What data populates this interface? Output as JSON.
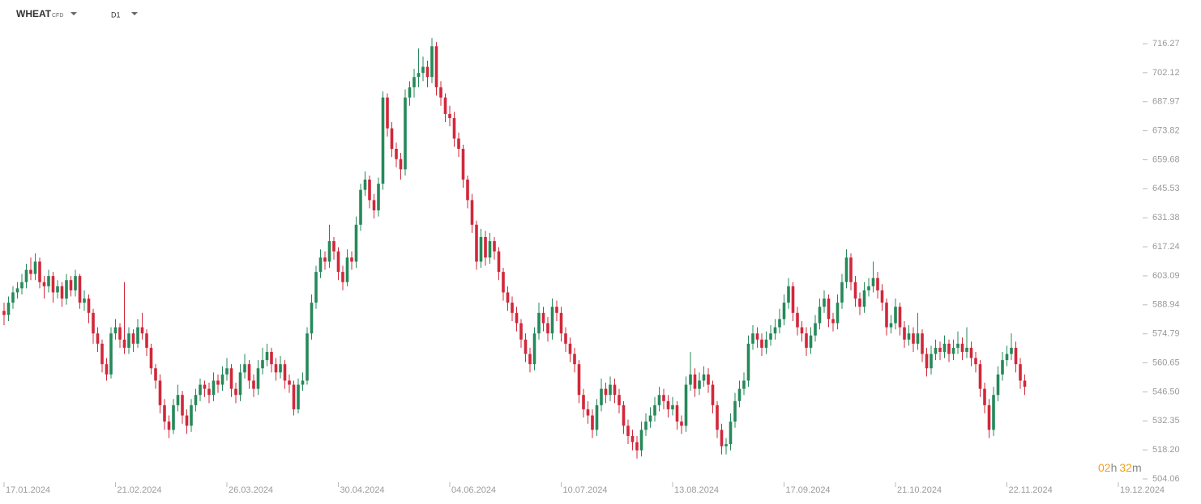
{
  "header": {
    "symbol": "WHEAT",
    "instrument_type": "CFD",
    "timeframe": "D1"
  },
  "countdown": {
    "hours": "02",
    "hours_unit": "h",
    "minutes": "32",
    "minutes_unit": "m"
  },
  "chart_data": {
    "type": "candlestick",
    "up_color": "#26895a",
    "down_color": "#d1283b",
    "xlim": [
      0,
      250
    ],
    "xticks": [
      {
        "value": 0,
        "label": "17.01.2024"
      },
      {
        "value": 25,
        "label": "21.02.2024"
      },
      {
        "value": 50,
        "label": "26.03.2024"
      },
      {
        "value": 75,
        "label": "30.04.2024"
      },
      {
        "value": 100,
        "label": "04.06.2024"
      },
      {
        "value": 125,
        "label": "10.07.2024"
      },
      {
        "value": 150,
        "label": "13.08.2024"
      },
      {
        "value": 175,
        "label": "17.09.2024"
      },
      {
        "value": 200,
        "label": "21.10.2024"
      },
      {
        "value": 225,
        "label": "22.11.2024"
      },
      {
        "value": 250,
        "label": "19.12.2024"
      }
    ],
    "ylim": [
      504.06,
      716.27
    ],
    "yticks": [
      716.27,
      702.12,
      687.97,
      673.82,
      659.68,
      645.53,
      631.38,
      617.24,
      603.09,
      588.94,
      574.79,
      560.65,
      {
        "value": 546.5,
        "label": "546.50"
      },
      532.35,
      {
        "value": 518.2,
        "label": "518.20"
      },
      504.06
    ],
    "open": [
      586,
      584,
      590,
      595,
      597,
      600,
      606,
      604,
      610,
      600,
      598,
      603,
      595,
      598,
      592,
      601,
      596,
      603,
      590,
      592,
      585,
      575,
      570,
      560,
      555,
      575,
      578,
      572,
      568,
      575,
      570,
      578,
      575,
      568,
      558,
      552,
      540,
      532,
      528,
      540,
      545,
      535,
      530,
      540,
      545,
      550,
      548,
      545,
      552,
      550,
      555,
      558,
      548,
      545,
      556,
      560,
      552,
      548,
      558,
      562,
      566,
      560,
      556,
      560,
      552,
      550,
      538,
      550,
      552,
      575,
      590,
      605,
      612,
      610,
      620,
      615,
      605,
      600,
      612,
      610,
      628,
      645,
      650,
      640,
      635,
      648,
      690,
      675,
      665,
      660,
      655,
      690,
      695,
      700,
      702,
      705,
      700,
      715,
      695,
      690,
      682,
      680,
      670,
      665,
      650,
      640,
      628,
      610,
      622,
      612,
      620,
      615,
      605,
      595,
      590,
      585,
      580,
      572,
      565,
      560,
      575,
      585,
      580,
      575,
      588,
      585,
      575,
      570,
      565,
      560,
      545,
      538,
      535,
      528,
      540,
      548,
      545,
      550,
      545,
      540,
      530,
      525,
      522,
      518,
      528,
      532,
      535,
      540,
      545,
      542,
      538,
      540,
      532,
      530,
      550,
      555,
      548,
      552,
      555,
      550,
      540,
      528,
      520,
      521,
      532,
      542,
      548,
      552,
      570,
      575,
      572,
      568,
      572,
      575,
      578,
      582,
      590,
      598,
      585,
      578,
      575,
      568,
      574,
      580,
      588,
      592,
      582,
      580,
      590,
      600,
      612,
      600,
      592,
      588,
      596,
      598,
      602,
      596,
      590,
      578,
      580,
      588,
      578,
      572,
      575,
      570,
      575,
      565,
      558,
      565,
      568,
      566,
      570,
      565,
      568,
      570,
      566,
      568,
      563,
      560,
      548,
      540,
      528,
      545,
      555,
      562,
      565,
      568,
      560,
      552
    ],
    "high": [
      590,
      593,
      598,
      600,
      604,
      609,
      612,
      614,
      612,
      603,
      606,
      605,
      601,
      600,
      604,
      603,
      606,
      604,
      596,
      594,
      587,
      578,
      572,
      563,
      578,
      582,
      580,
      600,
      578,
      577,
      582,
      585,
      577,
      570,
      560,
      555,
      543,
      535,
      543,
      550,
      547,
      538,
      543,
      548,
      553,
      552,
      551,
      556,
      555,
      559,
      563,
      560,
      551,
      560,
      565,
      562,
      555,
      562,
      568,
      570,
      568,
      563,
      564,
      562,
      555,
      552,
      553,
      556,
      578,
      594,
      608,
      616,
      615,
      628,
      622,
      617,
      608,
      616,
      615,
      632,
      648,
      654,
      652,
      643,
      651,
      693,
      692,
      678,
      668,
      663,
      694,
      698,
      704,
      714,
      710,
      708,
      719,
      717,
      698,
      692,
      686,
      683,
      673,
      667,
      652,
      643,
      630,
      626,
      625,
      624,
      622,
      617,
      607,
      598,
      593,
      588,
      582,
      575,
      568,
      578,
      590,
      588,
      583,
      592,
      591,
      588,
      578,
      573,
      568,
      562,
      548,
      542,
      538,
      543,
      553,
      551,
      554,
      553,
      548,
      542,
      533,
      528,
      525,
      532,
      536,
      539,
      544,
      549,
      548,
      545,
      544,
      542,
      535,
      554,
      566,
      558,
      556,
      559,
      558,
      552,
      542,
      531,
      524,
      536,
      546,
      552,
      556,
      574,
      579,
      578,
      575,
      576,
      579,
      582,
      587,
      594,
      602,
      600,
      588,
      581,
      578,
      578,
      584,
      592,
      596,
      594,
      585,
      594,
      604,
      616,
      614,
      603,
      595,
      600,
      602,
      610,
      605,
      599,
      592,
      584,
      592,
      590,
      581,
      579,
      578,
      585,
      577,
      568,
      569,
      572,
      571,
      574,
      572,
      572,
      576,
      573,
      578,
      571,
      566,
      562,
      551,
      543,
      549,
      559,
      566,
      569,
      575,
      571,
      563,
      555
    ],
    "low": [
      579,
      581,
      587,
      592,
      594,
      597,
      601,
      601,
      597,
      592,
      595,
      590,
      592,
      588,
      589,
      593,
      593,
      587,
      586,
      580,
      570,
      566,
      556,
      552,
      553,
      572,
      568,
      565,
      565,
      566,
      568,
      572,
      564,
      555,
      548,
      536,
      528,
      524,
      526,
      537,
      531,
      526,
      527,
      537,
      542,
      544,
      541,
      542,
      546,
      547,
      552,
      544,
      541,
      542,
      553,
      548,
      544,
      545,
      555,
      559,
      556,
      552,
      553,
      548,
      546,
      535,
      536,
      547,
      550,
      572,
      587,
      602,
      606,
      607,
      611,
      601,
      596,
      598,
      606,
      607,
      625,
      642,
      636,
      631,
      632,
      645,
      671,
      661,
      656,
      650,
      652,
      686,
      690,
      695,
      698,
      695,
      697,
      691,
      686,
      678,
      676,
      666,
      661,
      646,
      636,
      624,
      606,
      607,
      608,
      609,
      611,
      601,
      591,
      586,
      581,
      576,
      568,
      561,
      556,
      557,
      572,
      576,
      571,
      572,
      581,
      571,
      566,
      561,
      556,
      541,
      534,
      531,
      524,
      525,
      537,
      541,
      542,
      541,
      536,
      526,
      521,
      518,
      514,
      515,
      525,
      529,
      532,
      537,
      538,
      534,
      535,
      528,
      526,
      527,
      547,
      544,
      545,
      549,
      546,
      536,
      524,
      516,
      516,
      518,
      529,
      539,
      545,
      549,
      567,
      568,
      564,
      565,
      569,
      572,
      575,
      579,
      587,
      581,
      574,
      571,
      564,
      565,
      571,
      577,
      585,
      578,
      576,
      577,
      587,
      597,
      596,
      588,
      584,
      585,
      593,
      595,
      592,
      586,
      574,
      575,
      577,
      574,
      568,
      569,
      566,
      567,
      561,
      554,
      555,
      562,
      562,
      563,
      561,
      562,
      565,
      562,
      563,
      559,
      556,
      544,
      536,
      524,
      525,
      542,
      552,
      559,
      562,
      556,
      548,
      545
    ],
    "close": [
      584,
      590,
      595,
      597,
      600,
      606,
      604,
      610,
      600,
      598,
      603,
      595,
      598,
      592,
      601,
      596,
      603,
      590,
      592,
      585,
      575,
      570,
      560,
      555,
      575,
      578,
      572,
      568,
      575,
      570,
      578,
      575,
      568,
      558,
      552,
      540,
      532,
      528,
      540,
      545,
      535,
      530,
      540,
      545,
      550,
      548,
      545,
      552,
      550,
      555,
      558,
      548,
      545,
      556,
      560,
      552,
      548,
      558,
      562,
      566,
      560,
      556,
      560,
      552,
      550,
      538,
      550,
      552,
      575,
      590,
      605,
      612,
      610,
      620,
      615,
      605,
      600,
      612,
      610,
      628,
      645,
      650,
      640,
      635,
      648,
      690,
      675,
      665,
      660,
      655,
      690,
      695,
      700,
      702,
      705,
      700,
      715,
      695,
      690,
      682,
      680,
      670,
      665,
      650,
      640,
      628,
      610,
      622,
      612,
      620,
      615,
      605,
      595,
      590,
      585,
      580,
      572,
      565,
      560,
      575,
      585,
      580,
      575,
      588,
      585,
      575,
      570,
      565,
      560,
      545,
      538,
      535,
      528,
      540,
      548,
      545,
      550,
      545,
      540,
      530,
      525,
      522,
      518,
      528,
      532,
      535,
      540,
      545,
      542,
      538,
      540,
      532,
      530,
      550,
      555,
      548,
      552,
      555,
      550,
      540,
      528,
      520,
      521,
      532,
      542,
      548,
      552,
      570,
      575,
      572,
      568,
      572,
      575,
      578,
      582,
      590,
      598,
      585,
      578,
      575,
      568,
      574,
      580,
      588,
      592,
      582,
      580,
      590,
      600,
      612,
      600,
      592,
      588,
      596,
      598,
      602,
      596,
      590,
      578,
      580,
      588,
      578,
      572,
      575,
      570,
      575,
      565,
      558,
      565,
      568,
      566,
      570,
      565,
      568,
      570,
      566,
      568,
      563,
      560,
      548,
      540,
      528,
      545,
      555,
      562,
      565,
      568,
      560,
      552,
      549
    ]
  }
}
